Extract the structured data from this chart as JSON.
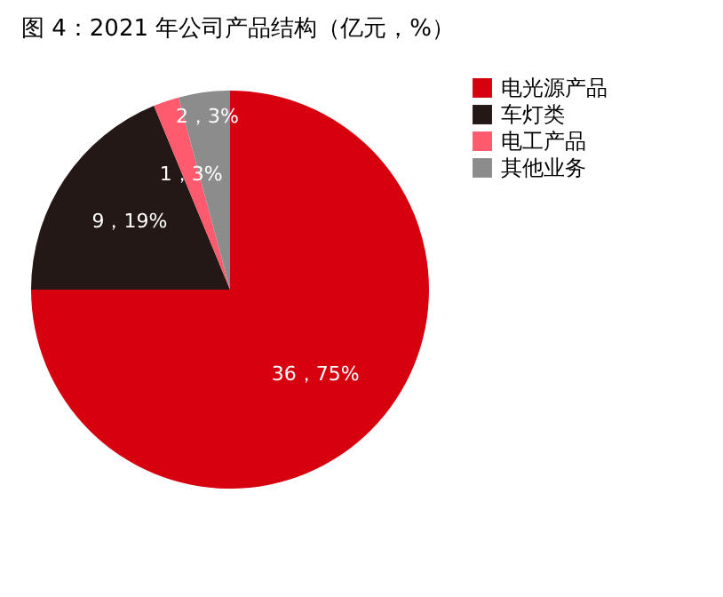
{
  "chart_data": {
    "type": "pie",
    "title": "图 4：2021 年公司产品结构（亿元，%）",
    "categories": [
      "电光源产品",
      "车灯类",
      "电工产品",
      "其他业务"
    ],
    "values": [
      36,
      9,
      1,
      2
    ],
    "colors": [
      "#d7000f",
      "#231815",
      "#ff5a6e",
      "#8c8c8c"
    ],
    "value_labels": [
      "36，75%",
      "9，19%",
      "1，3%",
      "2，3%"
    ],
    "legend": "right"
  }
}
